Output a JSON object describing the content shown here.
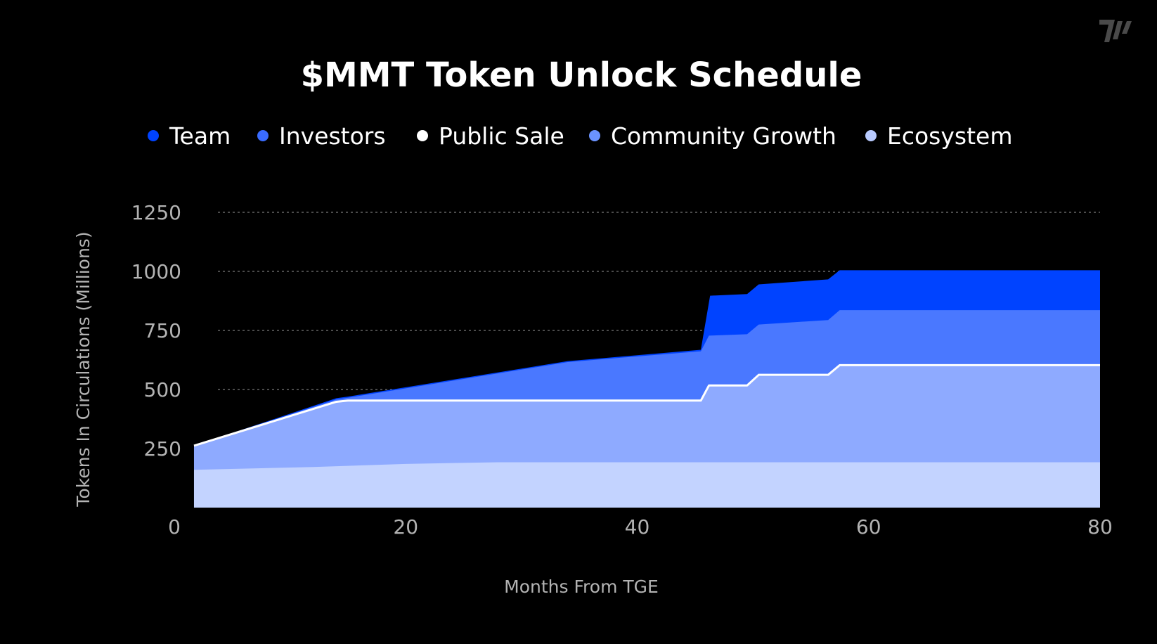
{
  "chart_data": {
    "type": "area",
    "stacked": true,
    "title": "$MMT Token Unlock Schedule",
    "xlabel": "Months From TGE",
    "ylabel": "Tokens In Circulations (Millions)",
    "xlim": [
      0,
      80
    ],
    "ylim": [
      0,
      1250
    ],
    "xticks": [
      0,
      20,
      40,
      60,
      80
    ],
    "yticks": [
      250,
      500,
      750,
      1000,
      1250
    ],
    "grid": "horizontal-dashed",
    "legend_position": "top",
    "legend": [
      {
        "name": "Team",
        "color": "#0043ff"
      },
      {
        "name": "Investors",
        "color": "#3a6cff"
      },
      {
        "name": "Public Sale",
        "color": "#ffffff"
      },
      {
        "name": "Community Growth",
        "color": "#6b93ff"
      },
      {
        "name": "Ecosystem",
        "color": "#b9cbff"
      }
    ],
    "layers": [
      {
        "name": "Ecosystem",
        "color": "#c3d3ff",
        "points": [
          [
            1.7,
            160
          ],
          [
            12,
            172
          ],
          [
            20,
            185
          ],
          [
            28,
            192
          ],
          [
            80,
            192
          ]
        ]
      },
      {
        "name": "Community Growth",
        "color": "#8eaaff",
        "points": [
          [
            1.7,
            262
          ],
          [
            14,
            448
          ],
          [
            15,
            453
          ],
          [
            45.5,
            453
          ],
          [
            46.2,
            517
          ],
          [
            49.5,
            517
          ],
          [
            50.5,
            562
          ],
          [
            56.5,
            562
          ],
          [
            57.5,
            603
          ],
          [
            80,
            603
          ]
        ]
      },
      {
        "name": "Investors",
        "color": "#4a78ff",
        "points": [
          [
            1.7,
            262
          ],
          [
            14,
            458
          ],
          [
            15,
            465
          ],
          [
            34,
            616
          ],
          [
            45.5,
            662
          ],
          [
            46.2,
            728
          ],
          [
            49.5,
            734
          ],
          [
            50.5,
            775
          ],
          [
            56.5,
            794
          ],
          [
            57.5,
            836
          ],
          [
            80,
            836
          ]
        ]
      },
      {
        "name": "Team",
        "color": "#0043ff",
        "points": [
          [
            1.7,
            262
          ],
          [
            14,
            463
          ],
          [
            15,
            470
          ],
          [
            34,
            620
          ],
          [
            45.5,
            668
          ],
          [
            46.3,
            897
          ],
          [
            49.5,
            904
          ],
          [
            50.5,
            945
          ],
          [
            56.5,
            966
          ],
          [
            57.5,
            1005
          ],
          [
            80,
            1005
          ]
        ]
      }
    ],
    "public_sale_line": {
      "name": "Public Sale",
      "color": "#ffffff",
      "points": [
        [
          1.7,
          262
        ],
        [
          14,
          448
        ],
        [
          15,
          453
        ],
        [
          45.5,
          453
        ],
        [
          46.2,
          517
        ],
        [
          49.5,
          517
        ],
        [
          50.5,
          562
        ],
        [
          56.5,
          562
        ],
        [
          57.5,
          603
        ],
        [
          80,
          603
        ]
      ]
    }
  },
  "logo": {
    "name": "brand-logo",
    "color": "#4a4a4a"
  }
}
